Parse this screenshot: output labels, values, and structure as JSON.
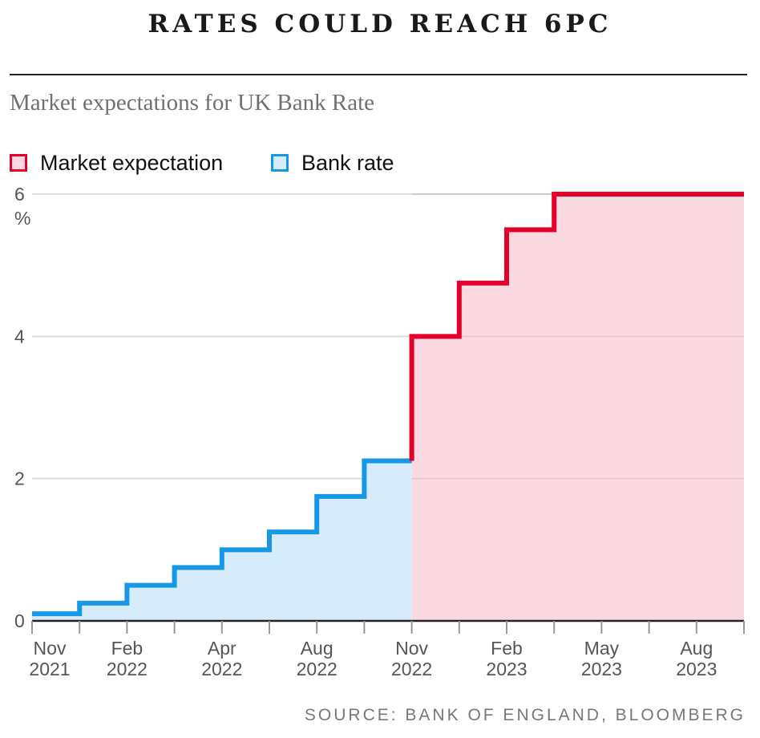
{
  "header": {
    "title": "RATES COULD REACH 6PC",
    "subtitle": "Market expectations for UK Bank Rate"
  },
  "source": "SOURCE: BANK OF ENGLAND, BLOOMBERG",
  "colors": {
    "expectation_line": "#e4002b",
    "expectation_fill": "#fbd9e0",
    "bank_line": "#1798e6",
    "bank_fill": "#d7ecfb"
  },
  "chart_data": {
    "type": "area",
    "title": "RATES COULD REACH 6PC",
    "subtitle": "Market expectations for UK Bank Rate",
    "step": true,
    "ylabel": "%",
    "ylim": [
      0,
      6
    ],
    "yticks": [
      0,
      2,
      4,
      6
    ],
    "grid": true,
    "legend_position": "top-left",
    "x_period_count": 15,
    "xticks": [
      {
        "month": "Nov",
        "year": "2021",
        "index": 0
      },
      {
        "month": "Feb",
        "year": "2022",
        "index": 2
      },
      {
        "month": "Apr",
        "year": "2022",
        "index": 4
      },
      {
        "month": "Aug",
        "year": "2022",
        "index": 6
      },
      {
        "month": "Nov",
        "year": "2022",
        "index": 8
      },
      {
        "month": "Feb",
        "year": "2023",
        "index": 10
      },
      {
        "month": "May",
        "year": "2023",
        "index": 12
      },
      {
        "month": "Aug",
        "year": "2023",
        "index": 14
      }
    ],
    "series": [
      {
        "name": "Bank rate",
        "steps": [
          {
            "start": 0,
            "end": 1,
            "value": 0.1
          },
          {
            "start": 1,
            "end": 2,
            "value": 0.25
          },
          {
            "start": 2,
            "end": 3,
            "value": 0.5
          },
          {
            "start": 3,
            "end": 4,
            "value": 0.75
          },
          {
            "start": 4,
            "end": 5,
            "value": 1.0
          },
          {
            "start": 5,
            "end": 6,
            "value": 1.25
          },
          {
            "start": 6,
            "end": 7,
            "value": 1.75
          },
          {
            "start": 7,
            "end": 8,
            "value": 2.25
          }
        ]
      },
      {
        "name": "Market expectation",
        "steps": [
          {
            "start": 8,
            "end": 9,
            "value": 4.0
          },
          {
            "start": 9,
            "end": 10,
            "value": 4.75
          },
          {
            "start": 10,
            "end": 11,
            "value": 5.5
          },
          {
            "start": 11,
            "end": 15,
            "value": 6.0
          }
        ]
      }
    ]
  }
}
